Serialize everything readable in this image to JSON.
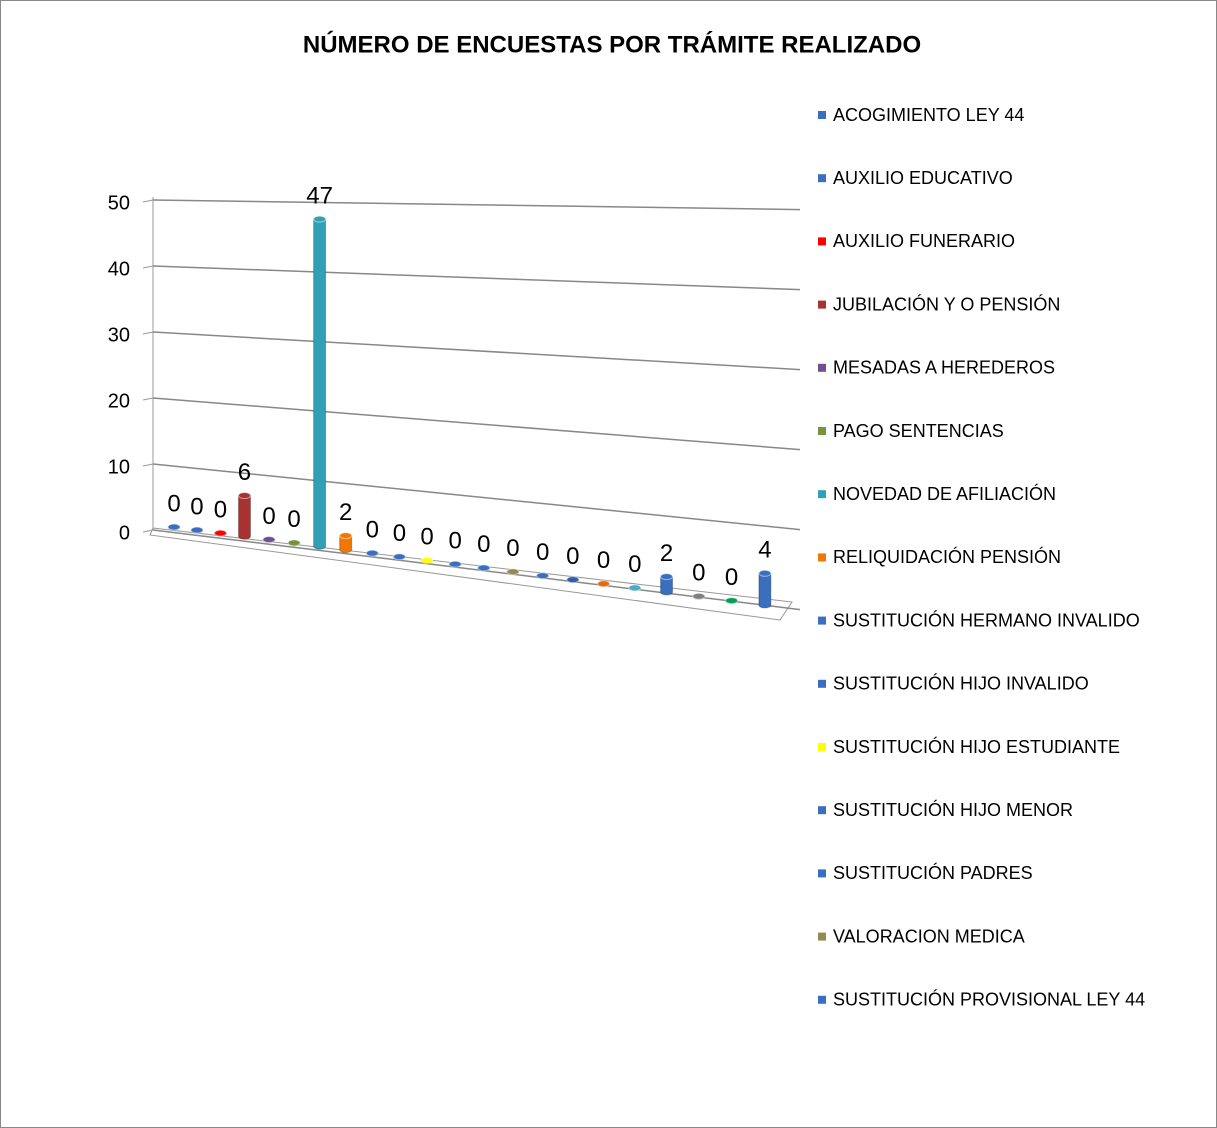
{
  "chart_data": {
    "type": "bar3d",
    "title": "NÚMERO DE ENCUESTAS POR TRÁMITE REALIZADO",
    "categories": [
      "ACOGIMIENTO LEY 44",
      "AUXILIO EDUCATIVO",
      "AUXILIO FUNERARIO",
      "JUBILACIÓN Y O PENSIÓN",
      "MESADAS A HEREDEROS",
      "PAGO SENTENCIAS",
      "NOVEDAD DE AFILIACIÓN",
      "RELIQUIDACIÓN PENSIÓN",
      "SUSTITUCIÓN HERMANO INVALIDO",
      "SUSTITUCIÓN HIJO INVALIDO",
      "SUSTITUCIÓN HIJO ESTUDIANTE",
      "SUSTITUCIÓN HIJO MENOR",
      "SUSTITUCIÓN PADRES",
      "VALORACION MEDICA",
      "SUSTITUCIÓN PROVISIONAL LEY 44",
      null,
      null,
      null,
      null,
      null,
      null,
      null
    ],
    "values": [
      0,
      0,
      0,
      6,
      0,
      0,
      47,
      2,
      0,
      0,
      0,
      0,
      0,
      0,
      0,
      0,
      0,
      0,
      2,
      0,
      0,
      4
    ],
    "colors": [
      "#3a6fc0",
      "#3a6fc0",
      "#ff0000",
      "#a83232",
      "#6e4f96",
      "#77933c",
      "#31a0b5",
      "#f07800",
      "#3a6fc0",
      "#3a6fc0",
      "#ffff00",
      "#3a6fc0",
      "#3a6fc0",
      "#948a54",
      "#3a6fc0",
      "#2f5da8",
      "#e46c0a",
      "#4bacc6",
      "#3a6fc0",
      "#7f7f7f",
      "#00a050",
      "#3a6fc0"
    ],
    "ylim": [
      0,
      50
    ],
    "yticks": [
      0,
      10,
      20,
      30,
      40,
      50
    ],
    "grid": true,
    "legend": "right"
  }
}
